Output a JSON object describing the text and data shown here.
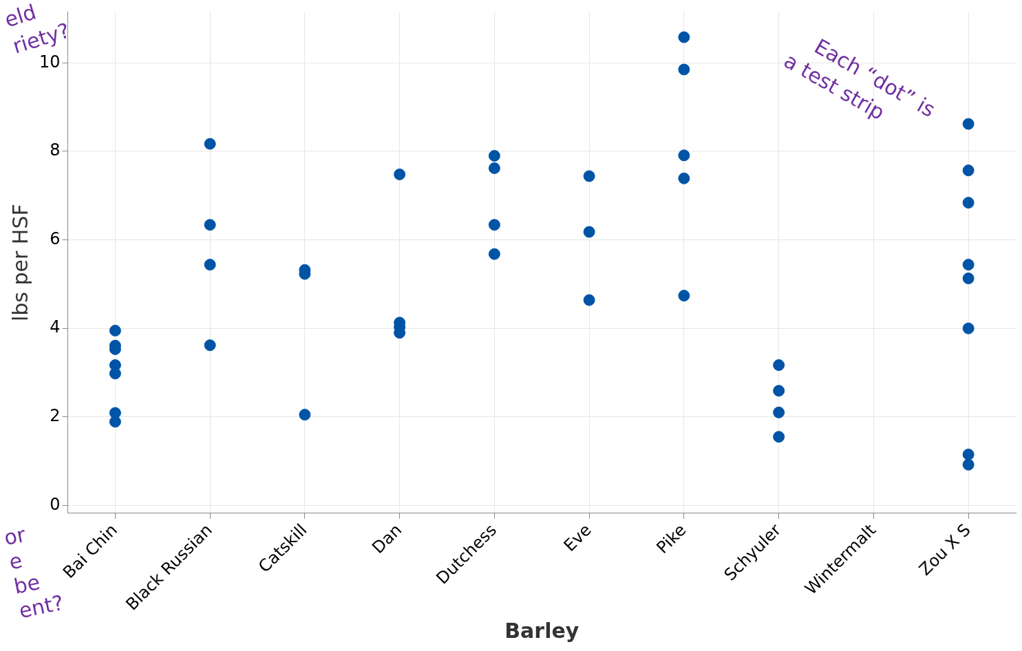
{
  "chart_data": {
    "type": "scatter",
    "xlabel": "Barley",
    "ylabel": "lbs per HSF",
    "categories": [
      "Bai Chin",
      "Black Russian",
      "Catskill",
      "Dan",
      "Dutchess",
      "Eve",
      "Pike",
      "Schyuler",
      "Wintermalt",
      "Zou X S"
    ],
    "series": [
      {
        "color": "#0054a6",
        "x": [
          "Bai Chin",
          "Bai Chin",
          "Bai Chin",
          "Bai Chin",
          "Bai Chin",
          "Bai Chin",
          "Bai Chin",
          "Black Russian",
          "Black Russian",
          "Black Russian",
          "Black Russian",
          "Catskill",
          "Catskill",
          "Catskill",
          "Dan",
          "Dan",
          "Dan",
          "Dan",
          "Dutchess",
          "Dutchess",
          "Dutchess",
          "Dutchess",
          "Eve",
          "Eve",
          "Eve",
          "Pike",
          "Pike",
          "Pike",
          "Pike",
          "Pike",
          "Schyuler",
          "Schyuler",
          "Schyuler",
          "Schyuler",
          "Zou X S",
          "Zou X S",
          "Zou X S",
          "Zou X S",
          "Zou X S",
          "Zou X S",
          "Zou X S",
          "Zou X S"
        ],
        "values": [
          3.95,
          3.61,
          3.53,
          3.17,
          2.98,
          2.09,
          1.89,
          8.17,
          6.34,
          5.44,
          3.62,
          5.32,
          5.23,
          2.05,
          7.48,
          4.13,
          4.03,
          3.9,
          7.9,
          7.62,
          6.34,
          5.68,
          7.44,
          6.18,
          4.64,
          10.58,
          9.85,
          7.91,
          7.39,
          4.74,
          3.17,
          2.59,
          2.1,
          1.55,
          8.62,
          7.57,
          6.84,
          5.44,
          5.13,
          4.0,
          1.15,
          0.92
        ]
      }
    ],
    "ylim": [
      -0.18,
      11.15
    ],
    "yticks": [
      0,
      2,
      4,
      6,
      8,
      10
    ],
    "grid": true,
    "legend": false,
    "marker": "circle",
    "annotations": [
      "Each “dot” is\na test strip",
      "eld\nriety?",
      "or\ne\nbe\nent?"
    ]
  }
}
